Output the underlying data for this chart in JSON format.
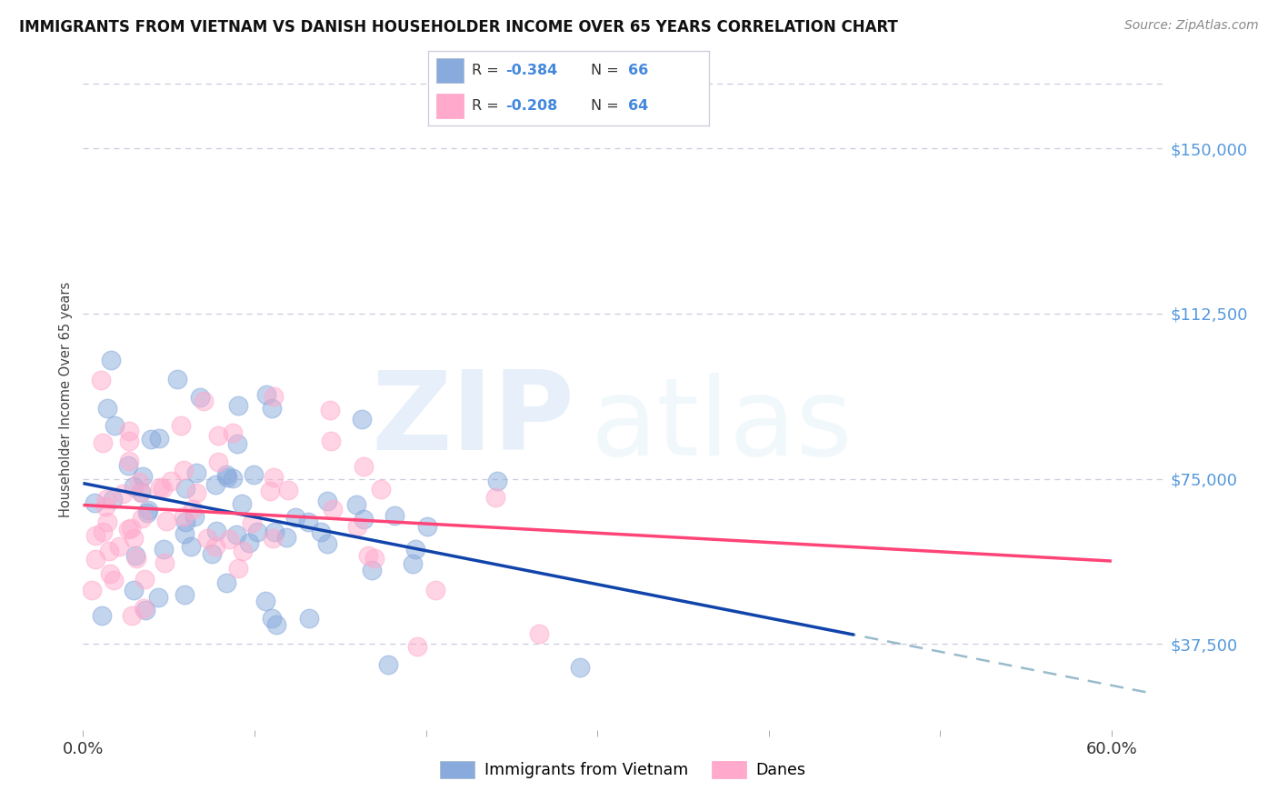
{
  "title": "IMMIGRANTS FROM VIETNAM VS DANISH HOUSEHOLDER INCOME OVER 65 YEARS CORRELATION CHART",
  "source": "Source: ZipAtlas.com",
  "ylabel": "Householder Income Over 65 years",
  "legend_bottom": [
    "Immigrants from Vietnam",
    "Danes"
  ],
  "r_vietnam": -0.384,
  "n_vietnam": 66,
  "r_danes": -0.208,
  "n_danes": 64,
  "y_ticks": [
    37500,
    75000,
    112500,
    150000
  ],
  "y_tick_labels": [
    "$37,500",
    "$75,000",
    "$112,500",
    "$150,000"
  ],
  "xlim": [
    0.0,
    0.63
  ],
  "ylim": [
    18000,
    168000
  ],
  "blue_scatter": "#88AADD",
  "pink_scatter": "#FFAACC",
  "blue_line": "#1144AA",
  "pink_line": "#FF4477",
  "dash_color": "#99BBCC",
  "grid_color": "#CCCCDD",
  "tick_color": "#5599DD",
  "title_fontsize": 12,
  "source_fontsize": 10,
  "tick_fontsize": 13
}
